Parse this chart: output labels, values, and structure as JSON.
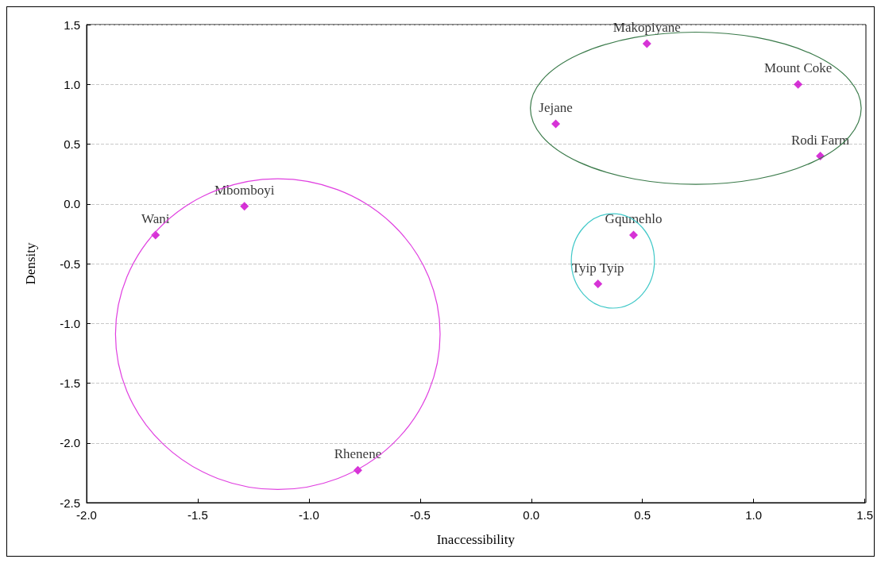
{
  "chart_data": {
    "type": "scatter",
    "xlabel": "Inaccessibility",
    "ylabel": "Density",
    "x": [
      0.52,
      1.2,
      0.11,
      1.3,
      0.46,
      0.3,
      -1.29,
      -1.69,
      -0.78
    ],
    "values": [
      1.34,
      1.0,
      0.67,
      0.4,
      -0.26,
      -0.67,
      -0.02,
      -0.26,
      -2.23
    ],
    "color": "#cc00cc",
    "marker": "diamond",
    "xlim": [
      -2.0,
      1.5
    ],
    "xticks": [
      {
        "value": -2.0,
        "label": "-2.0"
      },
      {
        "value": -1.5,
        "label": "-1.5"
      },
      {
        "value": -1.0,
        "label": "-1.0"
      },
      {
        "value": -0.5,
        "label": "-0.5"
      },
      {
        "value": 0.0,
        "label": "0.0"
      },
      {
        "value": 0.5,
        "label": "0.5"
      },
      {
        "value": 1.0,
        "label": "1.0"
      },
      {
        "value": 1.5,
        "label": "1.5"
      }
    ],
    "ylim": [
      -2.5,
      1.5
    ],
    "yticks": [
      {
        "value": -2.5,
        "label": "-2.5"
      },
      {
        "value": -2.0,
        "label": "-2.0"
      },
      {
        "value": -1.5,
        "label": "-1.5"
      },
      {
        "value": -1.0,
        "label": "-1.0"
      },
      {
        "value": -0.5,
        "label": "-0.5"
      },
      {
        "value": 0.0,
        "label": "0.0"
      },
      {
        "value": 0.5,
        "label": "0.5"
      },
      {
        "value": 1.0,
        "label": "1.0"
      },
      {
        "value": 1.5,
        "label": "1.5"
      }
    ],
    "grid": "y",
    "annotations": [
      {
        "text": "Makopiyane",
        "x": 0.52,
        "y": 1.34
      },
      {
        "text": "Mount Coke",
        "x": 1.2,
        "y": 1.0
      },
      {
        "text": "Jejane",
        "x": 0.11,
        "y": 0.67
      },
      {
        "text": "Rodi Farm",
        "x": 1.3,
        "y": 0.4
      },
      {
        "text": "Gqumehlo",
        "x": 0.46,
        "y": -0.26
      },
      {
        "text": "Tyip Tyip",
        "x": 0.3,
        "y": -0.67
      },
      {
        "text": "Mbomboyi",
        "x": -1.29,
        "y": -0.02
      },
      {
        "text": "Wani",
        "x": -1.69,
        "y": -0.26
      },
      {
        "text": "Rhenene",
        "x": -0.78,
        "y": -2.23
      }
    ]
  }
}
